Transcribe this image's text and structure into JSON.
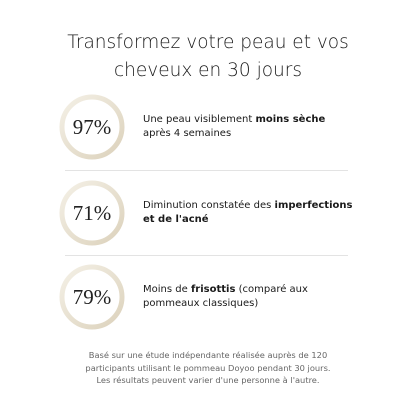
{
  "header": {
    "title_line1": "Transformez votre peau et vos",
    "title_line2": "cheveux en 30 jours"
  },
  "stats": [
    {
      "value": "97%",
      "before": "Une peau visiblement ",
      "bold": "moins sèche",
      "after": " après 4 semaines"
    },
    {
      "value": "71%",
      "before": "Diminution constatée des ",
      "bold": "imperfections et de l'acné",
      "after": ""
    },
    {
      "value": "79%",
      "before": "Moins de ",
      "bold": "frisottis",
      "after": " (comparé aux pommeaux classiques)"
    }
  ],
  "footnote": "Basé sur une étude indépendante réalisée auprès de 120 participants utilisant le pommeau Doyoo pendant 30 jours. Les résultats peuvent varier d'une personne à l'autre."
}
